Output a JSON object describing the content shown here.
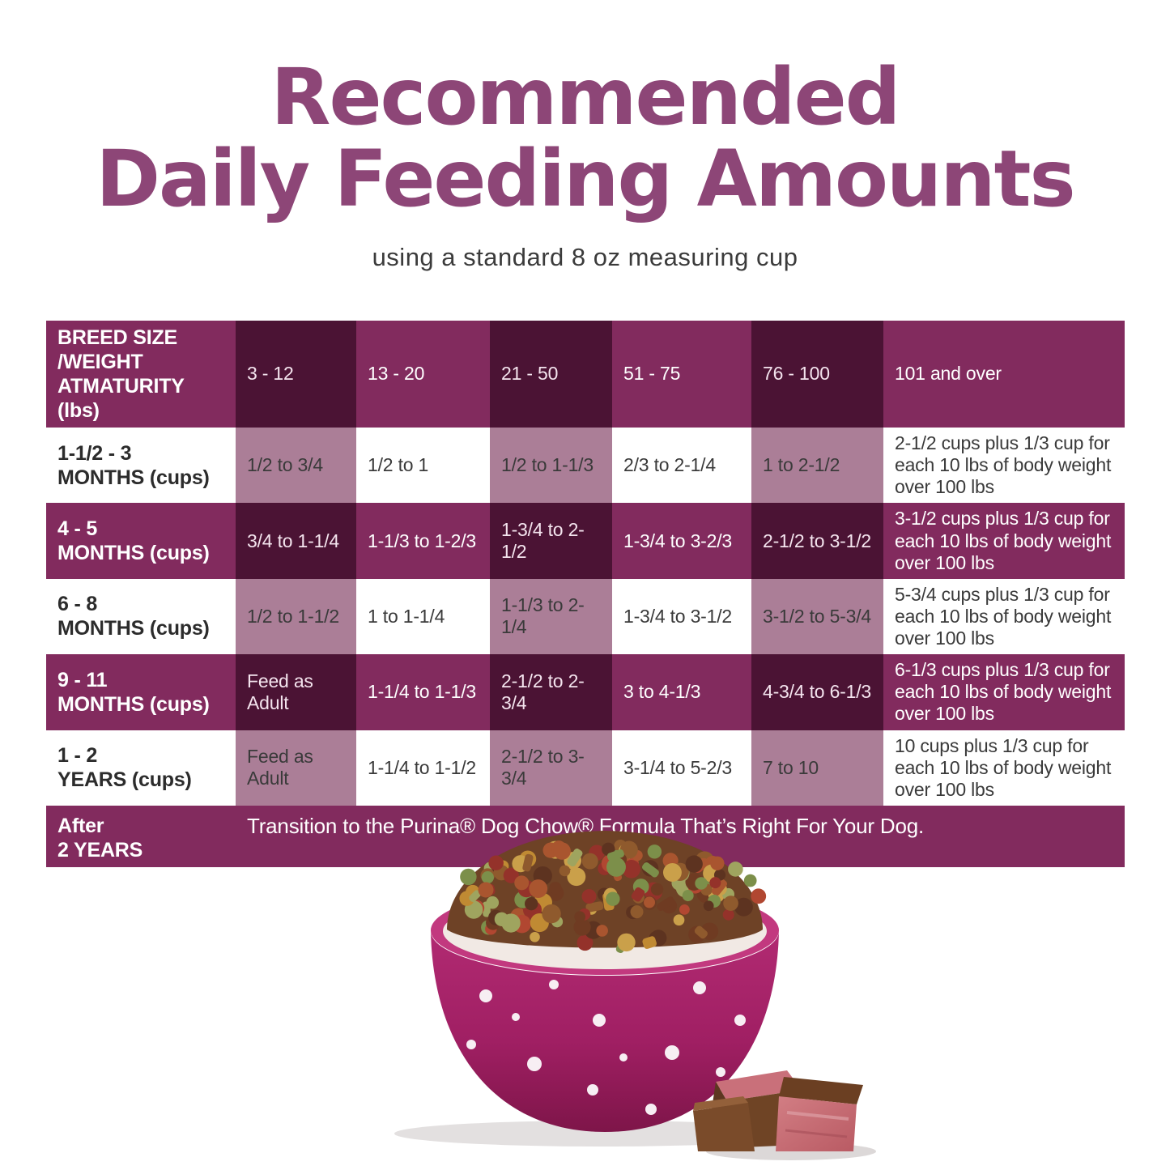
{
  "title": {
    "line1": "Recommended",
    "line2": "Daily Feeding Amounts",
    "subtitle": "using a standard 8 oz measuring cup"
  },
  "table": {
    "header": {
      "label_line1": "BREED SIZE /WEIGHT",
      "label_line2": "ATMATURITY (lbs)",
      "columns": [
        "3 - 12",
        "13 - 20",
        "21 - 50",
        "51 - 75",
        "76 - 100",
        "101 and over"
      ]
    },
    "rows": [
      {
        "label_line1": "1-1/2 - 3",
        "label_line2": "MONTHS (cups)",
        "values": [
          "1/2 to 3/4",
          "1/2 to 1",
          "1/2 to 1-1/3",
          "2/3 to 2-1/4",
          "1 to 2-1/2",
          "2-1/2 cups plus 1/3 cup for each 10 lbs of body weight over 100 lbs"
        ]
      },
      {
        "label_line1": "4 - 5",
        "label_line2": "MONTHS (cups)",
        "values": [
          "3/4 to 1-1/4",
          "1-1/3 to 1-2/3",
          "1-3/4 to 2-1/2",
          "1-3/4 to 3-2/3",
          "2-1/2 to 3-1/2",
          "3-1/2 cups plus 1/3 cup for each 10 lbs of body weight over 100 lbs"
        ]
      },
      {
        "label_line1": "6 - 8",
        "label_line2": "MONTHS (cups)",
        "values": [
          "1/2 to 1-1/2",
          "1 to 1-1/4",
          "1-1/3 to 2-1/4",
          "1-3/4 to 3-1/2",
          "3-1/2 to 5-3/4",
          "5-3/4 cups plus 1/3 cup for each 10 lbs of body weight over 100 lbs"
        ]
      },
      {
        "label_line1": "9 - 11",
        "label_line2": "MONTHS (cups)",
        "values": [
          "Feed as Adult",
          "1-1/4 to 1-1/3",
          "2-1/2 to 2-3/4",
          "3 to 4-1/3",
          "4-3/4 to 6-1/3",
          "6-1/3 cups plus 1/3 cup for each 10 lbs of body weight over 100 lbs"
        ]
      },
      {
        "label_line1": "1 - 2",
        "label_line2": "YEARS (cups)",
        "values": [
          "Feed as Adult",
          "1-1/4 to 1-1/2",
          "2-1/2 to 3-3/4",
          "3-1/4 to 5-2/3",
          "7 to 10",
          "10 cups plus 1/3 cup for each 10 lbs of body weight over 100 lbs"
        ]
      }
    ],
    "footer": {
      "label_line1": "After",
      "label_line2": "2 YEARS",
      "text": "Transition to the Purina® Dog Chow® Formula That’s Right For Your Dog."
    }
  },
  "colors": {
    "title_purple": "#8d4677",
    "cell_medium_purple": "#822b5e",
    "cell_dark_maroon": "#4b1334",
    "cell_light_mauve": "#ab7e97",
    "cell_white": "#ffffff",
    "dark_text": "#3a3a3a",
    "bowl_magenta": "#a01f63"
  },
  "illustration": {
    "name": "polka-dot-bowl-of-kibble-with-beef-chunks"
  }
}
